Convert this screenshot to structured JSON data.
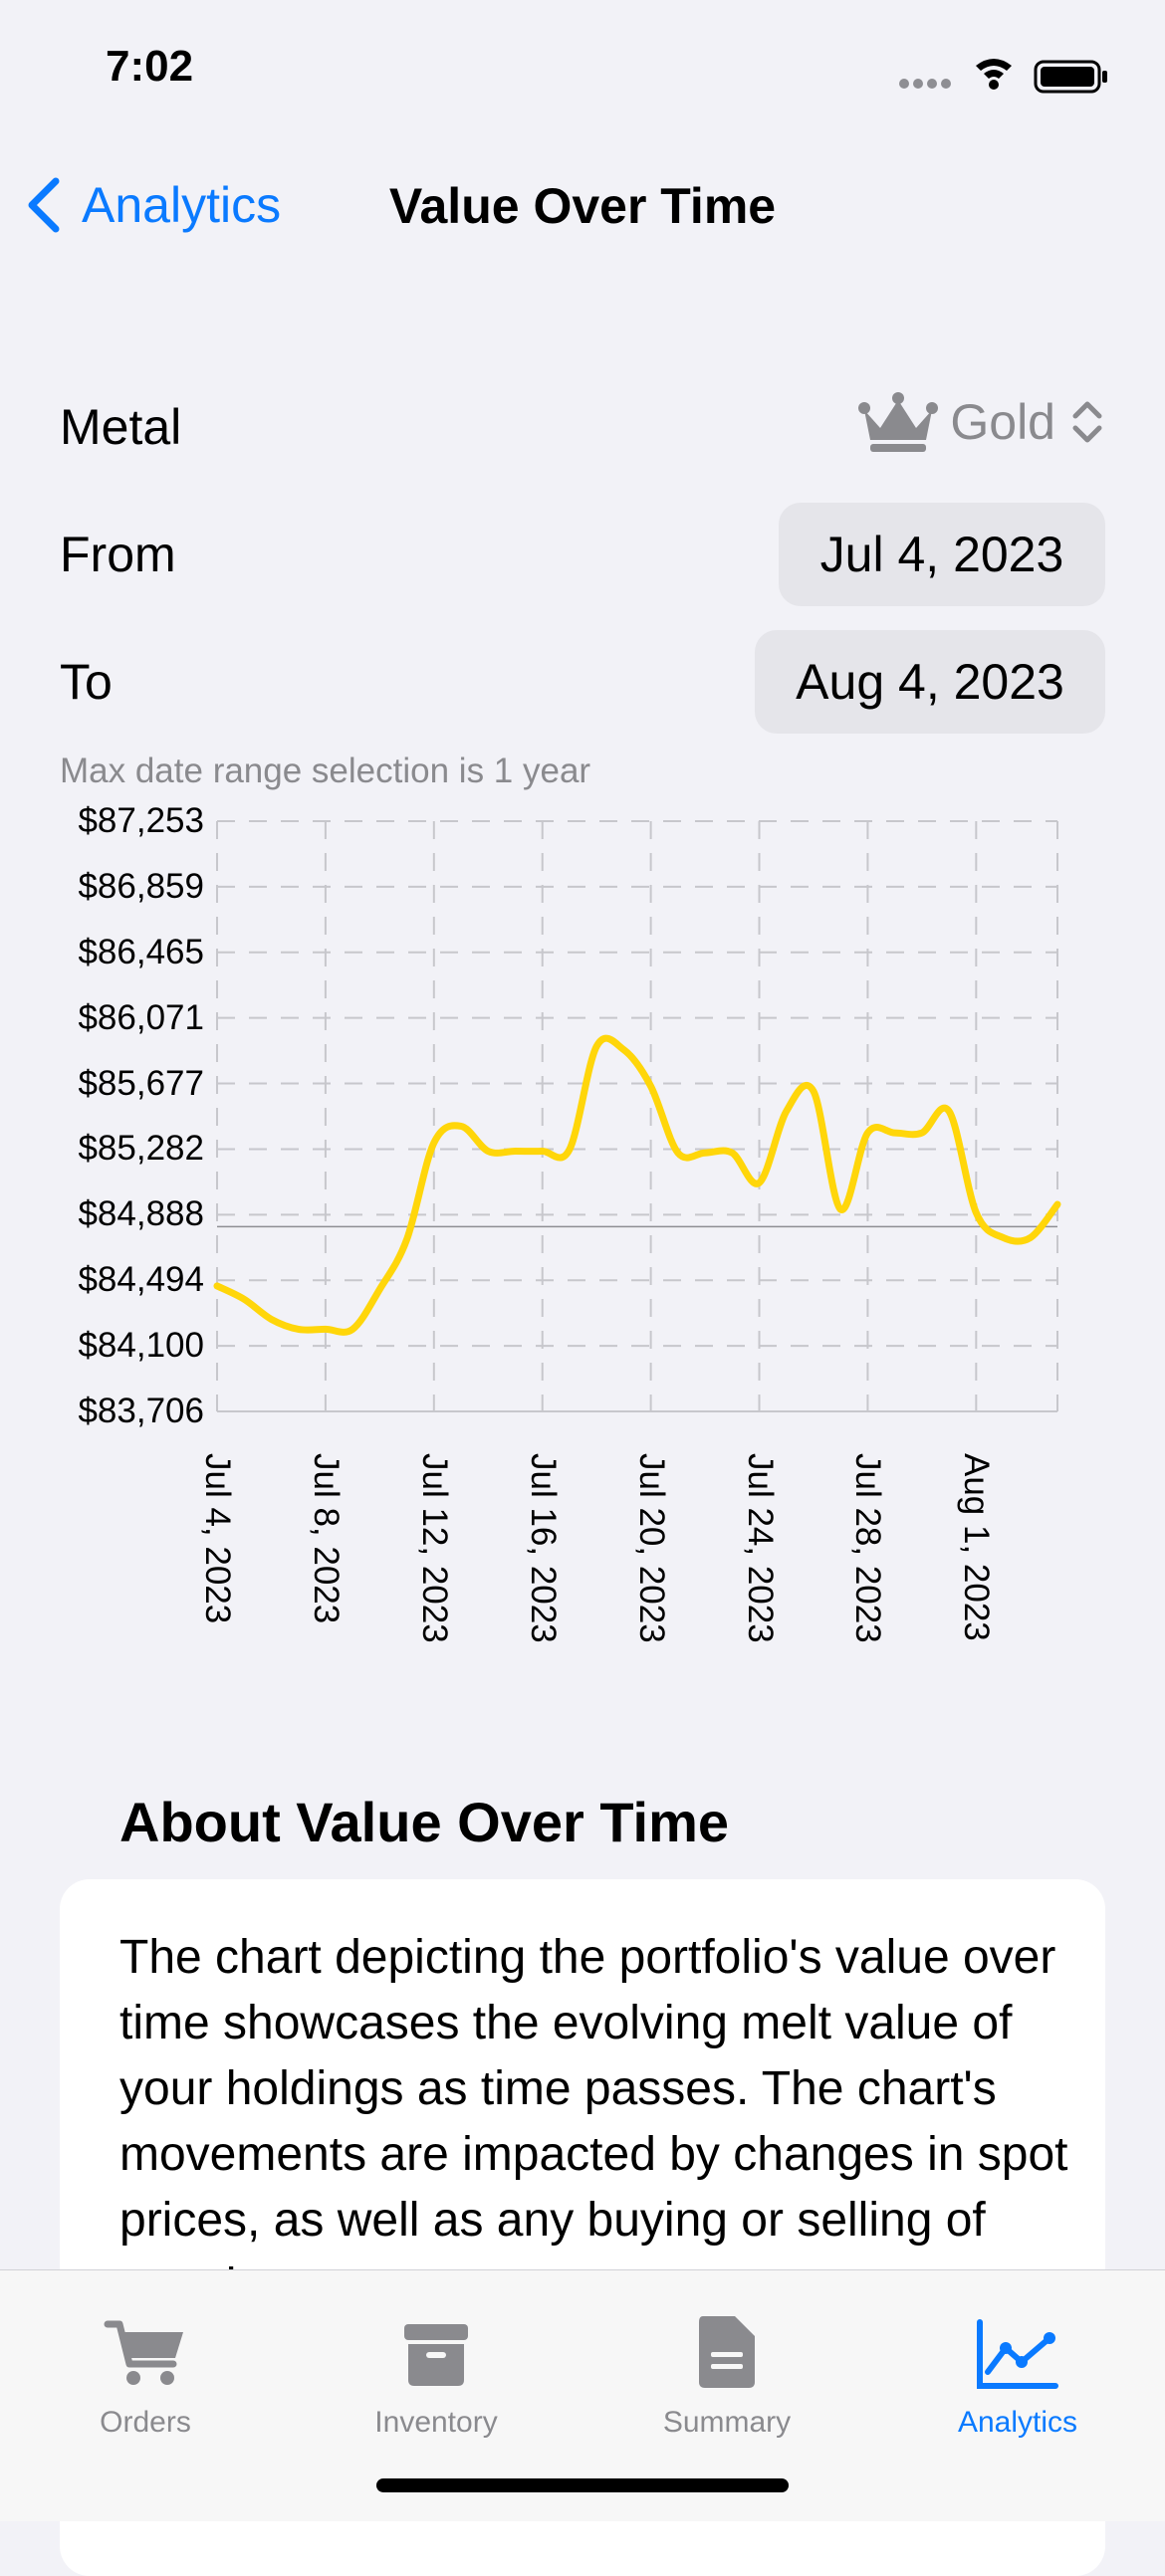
{
  "status": {
    "time": "7:02"
  },
  "nav": {
    "back_label": "Analytics",
    "title": "Value Over Time"
  },
  "form": {
    "metal_label": "Metal",
    "metal_value": "Gold",
    "from_label": "From",
    "from_value": "Jul 4, 2023",
    "to_label": "To",
    "to_value": "Aug 4, 2023",
    "hint": "Max date range selection is 1 year"
  },
  "chart_data": {
    "type": "line",
    "title": "",
    "xlabel": "",
    "ylabel": "",
    "color": "#ffd60a",
    "y_ticks": [
      "$87,253",
      "$86,859",
      "$86,465",
      "$86,071",
      "$85,677",
      "$85,282",
      "$84,888",
      "$84,494",
      "$84,100",
      "$83,706"
    ],
    "x_ticks": [
      "Jul 4, 2023",
      "Jul 8, 2023",
      "Jul 12, 2023",
      "Jul 16, 2023",
      "Jul 20, 2023",
      "Jul 24, 2023",
      "Jul 28, 2023",
      "Aug 1, 2023"
    ],
    "ylim": [
      83706,
      87253
    ],
    "x": [
      "2023-07-04",
      "2023-07-05",
      "2023-07-06",
      "2023-07-07",
      "2023-07-08",
      "2023-07-09",
      "2023-07-10",
      "2023-07-11",
      "2023-07-12",
      "2023-07-13",
      "2023-07-14",
      "2023-07-15",
      "2023-07-16",
      "2023-07-17",
      "2023-07-18",
      "2023-07-19",
      "2023-07-20",
      "2023-07-21",
      "2023-07-22",
      "2023-07-23",
      "2023-07-24",
      "2023-07-25",
      "2023-07-26",
      "2023-07-27",
      "2023-07-28",
      "2023-07-29",
      "2023-07-30",
      "2023-07-31",
      "2023-08-01",
      "2023-08-02",
      "2023-08-03",
      "2023-08-04"
    ],
    "values": [
      84460,
      84380,
      84260,
      84200,
      84200,
      84200,
      84440,
      84740,
      85320,
      85420,
      85270,
      85270,
      85270,
      85280,
      85900,
      85880,
      85660,
      85260,
      85260,
      85260,
      85080,
      85510,
      85630,
      84920,
      85380,
      85380,
      85380,
      85510,
      84900,
      84750,
      84750,
      84950
    ],
    "baseline": 84816
  },
  "about": {
    "title": "About Value Over Time",
    "body": "The chart depicting the portfolio's value over time showcases the evolving melt value of your holdings as time passes. The chart's movements are impacted by changes in spot prices, as well as any buying or selling of metals."
  },
  "tabs": [
    {
      "label": "Orders",
      "icon": "cart-icon"
    },
    {
      "label": "Inventory",
      "icon": "archivebox-icon"
    },
    {
      "label": "Summary",
      "icon": "document-icon"
    },
    {
      "label": "Analytics",
      "icon": "chart-line-icon"
    }
  ],
  "colors": {
    "accent": "#0a7aff",
    "line": "#ffd60a",
    "pill": "#e5e5ea"
  }
}
